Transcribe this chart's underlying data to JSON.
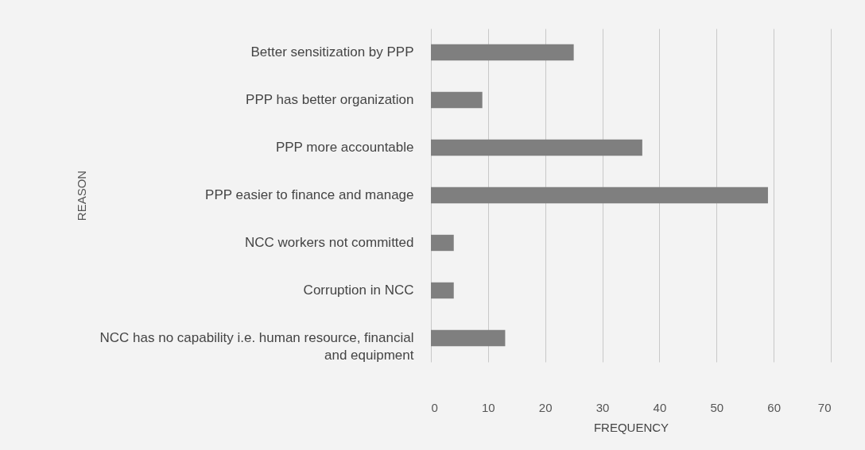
{
  "chart_data": {
    "type": "bar",
    "orientation": "horizontal",
    "xlabel": "FREQUENCY",
    "ylabel": "REASON",
    "categories": [
      "Better sensitization by PPP",
      "PPP has better organization",
      "PPP more accountable",
      "PPP easier to finance and manage",
      "NCC workers not committed",
      "Corruption in NCC",
      "NCC has no capability i.e. human resource, financial and equipment"
    ],
    "values": [
      25,
      9,
      37,
      59,
      4,
      4,
      13
    ],
    "color": "#7f7f7f",
    "xlim": [
      0,
      70
    ],
    "xticks": [
      0,
      10,
      20,
      30,
      40,
      50,
      60,
      70
    ],
    "grid": "x"
  }
}
